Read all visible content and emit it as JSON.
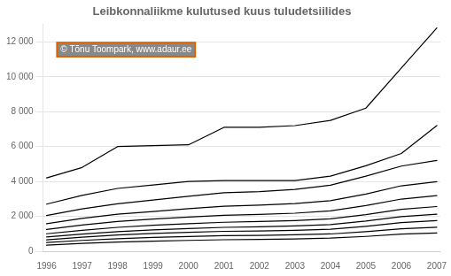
{
  "chart_data": {
    "type": "line",
    "title": "Leibkonnaliikme kulutused kuus tuludetsiilides",
    "annotation": "© Tõnu Toompark, www.adaur.ee",
    "x": [
      1996,
      1997,
      1998,
      1999,
      2000,
      2001,
      2002,
      2003,
      2004,
      2005,
      2006,
      2007
    ],
    "xlim": [
      1995.9,
      2007.1
    ],
    "xticks": [
      1996,
      1997,
      1998,
      1999,
      2000,
      2001,
      2002,
      2003,
      2004,
      2005,
      2006,
      2007
    ],
    "series": [
      {
        "color": "#000000",
        "values": [
          350,
          450,
          530,
          580,
          620,
          660,
          680,
          700,
          750,
          850,
          980,
          1050
        ]
      },
      {
        "color": "#000000",
        "values": [
          500,
          620,
          720,
          790,
          840,
          890,
          910,
          940,
          990,
          1120,
          1290,
          1380
        ]
      },
      {
        "color": "#000000",
        "values": [
          650,
          800,
          930,
          1020,
          1080,
          1140,
          1160,
          1200,
          1260,
          1430,
          1640,
          1760
        ]
      },
      {
        "color": "#000000",
        "values": [
          820,
          980,
          1120,
          1220,
          1300,
          1370,
          1400,
          1450,
          1530,
          1730,
          1980,
          2120
        ]
      },
      {
        "color": "#000000",
        "values": [
          1000,
          1200,
          1370,
          1490,
          1580,
          1660,
          1700,
          1760,
          1860,
          2100,
          2400,
          2560
        ]
      },
      {
        "color": "#000000",
        "values": [
          1250,
          1500,
          1700,
          1840,
          1960,
          2060,
          2110,
          2180,
          2310,
          2620,
          2990,
          3190
        ]
      },
      {
        "color": "#000000",
        "values": [
          1580,
          1880,
          2120,
          2280,
          2440,
          2580,
          2640,
          2730,
          2900,
          3280,
          3750,
          3990
        ]
      },
      {
        "color": "#000000",
        "values": [
          2050,
          2430,
          2720,
          2930,
          3150,
          3350,
          3420,
          3540,
          3780,
          4300,
          4880,
          5200
        ]
      },
      {
        "color": "#000000",
        "values": [
          2700,
          3200,
          3600,
          3800,
          4000,
          4050,
          4050,
          4050,
          4300,
          4900,
          5600,
          7200
        ]
      },
      {
        "color": "#000000",
        "values": [
          4200,
          4800,
          6000,
          6050,
          6100,
          7100,
          7100,
          7200,
          7500,
          8200,
          10500,
          12800
        ]
      }
    ],
    "ylim": [
      0,
      13000
    ],
    "yticks": [
      0,
      {
        "value": 2000,
        "label": "2 000"
      },
      {
        "value": 4000,
        "label": "4 000"
      },
      {
        "value": 6000,
        "label": "6 000"
      },
      {
        "value": 8000,
        "label": "8 000"
      },
      {
        "value": 10000,
        "label": "10 000"
      },
      {
        "value": 12000,
        "label": "12 000"
      }
    ],
    "grid": "y"
  }
}
